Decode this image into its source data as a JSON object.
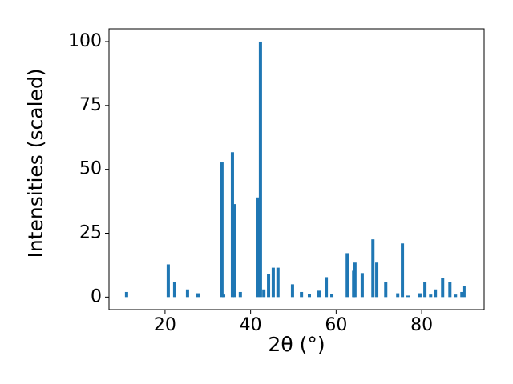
{
  "chart_data": {
    "type": "bar",
    "x_label": "2θ (°)",
    "y_label": "Intensities (scaled)",
    "color": "#1f77b4",
    "x": [
      11.0,
      20.75,
      22.25,
      25.25,
      27.7,
      33.3,
      33.7,
      35.75,
      36.3,
      37.6,
      41.6,
      42.3,
      43.1,
      44.2,
      45.3,
      46.4,
      49.8,
      51.9,
      53.75,
      56.0,
      57.7,
      59.0,
      62.6,
      64.1,
      64.4,
      66.1,
      68.6,
      69.5,
      71.6,
      74.4,
      75.5,
      76.8,
      79.6,
      80.75,
      82.1,
      83.2,
      84.9,
      86.6,
      87.9,
      89.4,
      89.9
    ],
    "values": [
      2,
      12.8,
      6,
      3,
      1.5,
      52.7,
      1,
      56.7,
      36.4,
      2,
      39,
      100,
      3,
      9,
      11.5,
      11.5,
      5,
      2,
      1.2,
      2.5,
      7.8,
      1.3,
      17.2,
      10.3,
      13.5,
      9.4,
      22.6,
      13.5,
      6,
      1.5,
      21,
      0.6,
      1.5,
      6,
      1,
      3,
      7.5,
      6,
      1,
      2,
      4.3
    ],
    "xlim": [
      6.9,
      94.6
    ],
    "xticks": [
      20,
      40,
      60,
      80
    ],
    "ylim": [
      -4.9,
      105
    ],
    "yticks": [
      0,
      25,
      50,
      75,
      100
    ]
  }
}
